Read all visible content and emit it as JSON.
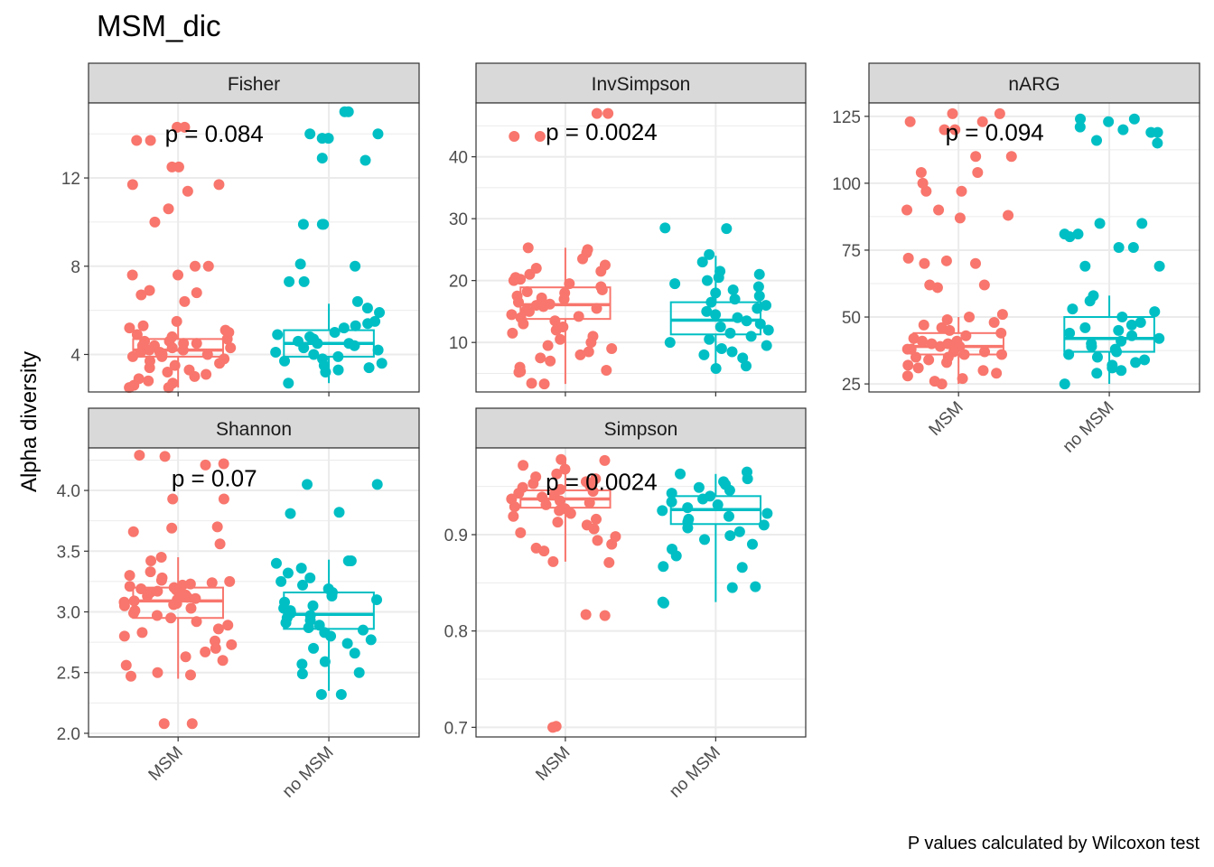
{
  "chart_data": {
    "type": "box",
    "title": "MSM_dic",
    "ylabel": "Alpha diversity",
    "xlabel": "",
    "caption": "P values calculated by Wilcoxon test",
    "groups": [
      "MSM",
      "no MSM"
    ],
    "colors": {
      "MSM": "#F8766D",
      "no MSM": "#00BFC4"
    },
    "grid": true,
    "facets": [
      {
        "name": "Fisher",
        "ylim": [
          2.3,
          15.4
        ],
        "yticks": [
          4,
          8,
          12
        ],
        "ytick_labels": [
          "4",
          "8",
          "12"
        ],
        "p_label": "p = 0.084",
        "p_y": 14.0,
        "boxes": {
          "MSM": {
            "ymin": 2.5,
            "q1": 3.9,
            "median": 4.2,
            "q3": 4.7,
            "ymax": 5.5
          },
          "no MSM": {
            "ymin": 2.7,
            "q1": 3.9,
            "median": 4.5,
            "q3": 5.1,
            "ymax": 6.3
          }
        },
        "points": {
          "MSM": [
            14.3,
            14.3,
            13.7,
            13.7,
            12.5,
            12.5,
            11.7,
            11.7,
            11.4,
            10.6,
            10.0,
            8.0,
            8.0,
            7.6,
            7.6,
            6.9,
            6.8,
            6.7,
            6.4,
            5.5,
            5.3,
            5.2,
            5.1,
            5.0,
            4.9,
            4.8,
            4.7,
            4.6,
            4.6,
            4.5,
            4.5,
            4.4,
            4.4,
            4.3,
            4.3,
            4.2,
            4.2,
            4.1,
            4.1,
            4.0,
            4.0,
            3.9,
            3.9,
            3.8,
            3.7,
            3.6,
            3.5,
            3.4,
            3.3,
            3.2,
            3.1,
            3.0,
            2.9,
            2.8,
            2.7,
            2.6,
            2.5,
            2.5
          ],
          "no MSM": [
            15.0,
            15.0,
            14.0,
            14.0,
            13.8,
            13.8,
            12.9,
            12.8,
            9.9,
            9.9,
            9.9,
            8.1,
            8.0,
            7.3,
            7.3,
            6.4,
            6.1,
            5.9,
            5.5,
            5.4,
            5.3,
            5.2,
            5.0,
            4.9,
            4.8,
            4.7,
            4.6,
            4.5,
            4.5,
            4.4,
            4.3,
            4.2,
            4.1,
            4.0,
            3.9,
            3.8,
            3.7,
            3.6,
            3.5,
            3.4,
            3.3,
            3.2,
            2.7
          ]
        }
      },
      {
        "name": "InvSimpson",
        "ylim": [
          2.0,
          48.7
        ],
        "yticks": [
          10,
          20,
          30,
          40
        ],
        "ytick_labels": [
          "10",
          "20",
          "30",
          "40"
        ],
        "p_label": "p = 0.0024",
        "p_y": 44.0,
        "boxes": {
          "MSM": {
            "ymin": 3.3,
            "q1": 13.8,
            "median": 16.1,
            "q3": 18.9,
            "ymax": 25.3
          },
          "no MSM": {
            "ymin": 6.0,
            "q1": 11.3,
            "median": 13.6,
            "q3": 16.5,
            "ymax": 24.0
          }
        },
        "points": {
          "MSM": [
            47.0,
            47.0,
            43.3,
            43.3,
            25.3,
            25.0,
            24.5,
            23.5,
            22.5,
            22.0,
            21.5,
            21.0,
            20.5,
            20.2,
            20.0,
            19.5,
            19.0,
            18.5,
            18.2,
            18.0,
            17.5,
            17.2,
            17.0,
            16.5,
            16.2,
            16.0,
            15.8,
            15.5,
            15.2,
            15.0,
            14.5,
            14.2,
            14.0,
            13.5,
            13.0,
            12.5,
            12.0,
            11.5,
            11.0,
            10.5,
            10.0,
            9.5,
            9.0,
            8.5,
            8.0,
            7.5,
            7.0,
            6.0,
            5.5,
            5.3,
            5.2,
            3.4,
            3.3
          ],
          "no MSM": [
            28.5,
            28.4,
            24.2,
            23.0,
            21.5,
            21.0,
            20.5,
            20.0,
            19.5,
            19.0,
            18.5,
            18.0,
            17.5,
            17.0,
            16.5,
            16.0,
            15.5,
            15.0,
            14.5,
            14.0,
            13.5,
            13.0,
            12.5,
            12.0,
            11.5,
            11.0,
            10.5,
            10.0,
            9.5,
            9.0,
            8.5,
            8.0,
            7.5,
            6.2,
            5.8
          ]
        }
      },
      {
        "name": "nARG",
        "ylim": [
          22,
          130
        ],
        "yticks": [
          25,
          50,
          75,
          100,
          125
        ],
        "ytick_labels": [
          "25",
          "50",
          "75",
          "100",
          "125"
        ],
        "p_label": "p = 0.094",
        "p_y": 119.0,
        "boxes": {
          "MSM": {
            "ymin": 25,
            "q1": 36,
            "median": 39,
            "q3": 44,
            "ymax": 50
          },
          "no MSM": {
            "ymin": 25,
            "q1": 37,
            "median": 42,
            "q3": 50,
            "ymax": 58
          }
        },
        "points": {
          "MSM": [
            126,
            126,
            123,
            123,
            120,
            120,
            110,
            110,
            104,
            104,
            100,
            97,
            97,
            90,
            90,
            88,
            87,
            72,
            71,
            70,
            70,
            62,
            62,
            61,
            51,
            50,
            49,
            48,
            47,
            46,
            45,
            44,
            43,
            42,
            41,
            41,
            40,
            40,
            39,
            39,
            38,
            38,
            37,
            37,
            36,
            36,
            35,
            35,
            34,
            33,
            32,
            31,
            30,
            29,
            28,
            27,
            26,
            25
          ],
          "no MSM": [
            124,
            124,
            123,
            121,
            120,
            119,
            119,
            116,
            115,
            85,
            85,
            81,
            81,
            80,
            76,
            76,
            69,
            69,
            58,
            56,
            53,
            52,
            50,
            48,
            47,
            46,
            45,
            44,
            43,
            42,
            41,
            40,
            39,
            38,
            37,
            36,
            35,
            34,
            33,
            32,
            31,
            30,
            29,
            25
          ]
        }
      },
      {
        "name": "Shannon",
        "ylim": [
          1.97,
          4.35
        ],
        "yticks": [
          2.0,
          2.5,
          3.0,
          3.5,
          4.0
        ],
        "ytick_labels": [
          "2.0",
          "2.5",
          "3.0",
          "3.5",
          "4.0"
        ],
        "p_label": "p = 0.07",
        "p_y": 4.1,
        "boxes": {
          "MSM": {
            "ymin": 2.45,
            "q1": 2.95,
            "median": 3.09,
            "q3": 3.2,
            "ymax": 3.45
          },
          "no MSM": {
            "ymin": 2.35,
            "q1": 2.86,
            "median": 2.98,
            "q3": 3.16,
            "ymax": 3.43
          }
        },
        "points": {
          "MSM": [
            4.29,
            4.28,
            4.22,
            4.21,
            3.93,
            3.93,
            3.7,
            3.69,
            3.66,
            3.56,
            3.45,
            3.42,
            3.33,
            3.3,
            3.28,
            3.26,
            3.25,
            3.24,
            3.23,
            3.22,
            3.21,
            3.2,
            3.19,
            3.18,
            3.17,
            3.16,
            3.15,
            3.14,
            3.13,
            3.12,
            3.11,
            3.1,
            3.09,
            3.08,
            3.07,
            3.06,
            3.05,
            3.03,
            3.01,
            2.99,
            2.97,
            2.95,
            2.92,
            2.89,
            2.86,
            2.83,
            2.8,
            2.76,
            2.73,
            2.7,
            2.67,
            2.63,
            2.6,
            2.56,
            2.5,
            2.48,
            2.47,
            2.08,
            2.08
          ],
          "no MSM": [
            4.05,
            4.05,
            3.82,
            3.81,
            3.42,
            3.42,
            3.4,
            3.36,
            3.32,
            3.28,
            3.25,
            3.22,
            3.19,
            3.16,
            3.13,
            3.1,
            3.08,
            3.05,
            3.03,
            3.01,
            2.99,
            2.97,
            2.95,
            2.93,
            2.91,
            2.89,
            2.87,
            2.85,
            2.83,
            2.8,
            2.77,
            2.74,
            2.7,
            2.66,
            2.59,
            2.57,
            2.5,
            2.49,
            2.32,
            2.32
          ]
        }
      },
      {
        "name": "Simpson",
        "ylim": [
          0.69,
          0.99
        ],
        "yticks": [
          0.7,
          0.8,
          0.9
        ],
        "ytick_labels": [
          "0.7",
          "0.8",
          "0.9"
        ],
        "p_label": "p = 0.0024",
        "p_y": 0.955,
        "boxes": {
          "MSM": {
            "ymin": 0.872,
            "q1": 0.928,
            "median": 0.937,
            "q3": 0.946,
            "ymax": 0.978
          },
          "no MSM": {
            "ymin": 0.83,
            "q1": 0.911,
            "median": 0.926,
            "q3": 0.94,
            "ymax": 0.963
          }
        },
        "points": {
          "MSM": [
            0.978,
            0.977,
            0.972,
            0.968,
            0.963,
            0.96,
            0.958,
            0.955,
            0.953,
            0.951,
            0.949,
            0.947,
            0.945,
            0.943,
            0.941,
            0.939,
            0.937,
            0.935,
            0.933,
            0.931,
            0.929,
            0.927,
            0.925,
            0.922,
            0.919,
            0.916,
            0.913,
            0.91,
            0.906,
            0.902,
            0.898,
            0.894,
            0.89,
            0.886,
            0.883,
            0.872,
            0.871,
            0.817,
            0.816,
            0.701,
            0.7
          ],
          "no MSM": [
            0.965,
            0.963,
            0.958,
            0.955,
            0.952,
            0.949,
            0.946,
            0.943,
            0.94,
            0.937,
            0.934,
            0.931,
            0.928,
            0.925,
            0.922,
            0.919,
            0.916,
            0.913,
            0.91,
            0.907,
            0.903,
            0.899,
            0.895,
            0.89,
            0.885,
            0.878,
            0.867,
            0.866,
            0.846,
            0.845,
            0.83,
            0.829
          ]
        }
      }
    ]
  }
}
